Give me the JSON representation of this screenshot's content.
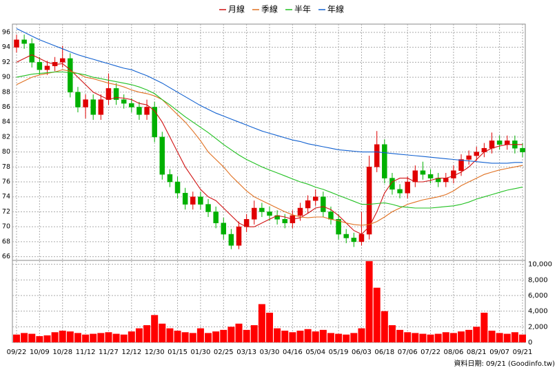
{
  "chart_data": [
    {
      "type": "candlestick",
      "categories": [
        "09/22",
        null,
        null,
        "10/09",
        null,
        null,
        "10/28",
        null,
        null,
        "11/12",
        null,
        null,
        "11/27",
        null,
        null,
        "12/12",
        null,
        null,
        "12/30",
        null,
        null,
        "01/15",
        null,
        null,
        "01/30",
        null,
        null,
        "02/25",
        null,
        null,
        "03/13",
        null,
        null,
        "03/30",
        null,
        null,
        "04/16",
        null,
        null,
        "05/04",
        null,
        null,
        "05/19",
        null,
        null,
        "06/03",
        null,
        null,
        "06/18",
        null,
        null,
        "07/06",
        null,
        null,
        "07/22",
        null,
        null,
        "08/06",
        null,
        null,
        "08/21",
        null,
        null,
        "09/07",
        null,
        null,
        "09/21"
      ],
      "open": [
        94,
        95,
        94.5,
        92,
        91,
        91.5,
        92,
        92.5,
        88,
        86,
        87,
        85,
        87,
        88.5,
        87,
        86.5,
        86,
        85,
        86,
        82,
        77,
        76,
        74.5,
        73,
        74,
        73,
        72,
        70.5,
        69,
        67.5,
        70,
        71,
        72.5,
        72,
        71.5,
        71,
        70.5,
        71.5,
        72.5,
        73.5,
        74,
        72,
        71,
        69,
        68.5,
        68,
        69,
        78,
        81,
        76.5,
        75,
        74.5,
        76,
        77.5,
        77,
        76.5,
        76,
        76.5,
        77.5,
        79,
        79.5,
        80,
        80.5,
        81.5,
        81,
        81.5,
        80.5
      ],
      "high": [
        95.7,
        95.7,
        95.2,
        92.7,
        92.2,
        92.7,
        94.2,
        93.2,
        88.7,
        87.7,
        87.7,
        87.7,
        90.5,
        89.2,
        87.7,
        87.2,
        86.7,
        87,
        86.7,
        82.7,
        77.7,
        76.7,
        75.2,
        74.7,
        74.7,
        73.7,
        72.7,
        71.2,
        69.7,
        70.7,
        71.7,
        73.5,
        73.2,
        72.7,
        72.2,
        71.7,
        72.2,
        73.2,
        74.2,
        75,
        74.7,
        72.7,
        71.7,
        69.7,
        69.2,
        72,
        79.5,
        82.8,
        81.7,
        77.2,
        75.7,
        76.7,
        78.2,
        78.7,
        77.7,
        77.2,
        77.2,
        78.2,
        79.7,
        80.2,
        80.7,
        81.2,
        82.6,
        82.2,
        82.2,
        82.2,
        81.2
      ],
      "low": [
        93.3,
        93.8,
        91.3,
        90.3,
        90.3,
        90.8,
        91.3,
        87.3,
        85.3,
        84.5,
        84.3,
        84.3,
        86.3,
        86.3,
        85.8,
        85.3,
        84.3,
        84.3,
        81.3,
        76.3,
        75.3,
        73.8,
        72.3,
        72.3,
        72.3,
        71.3,
        69.8,
        68.3,
        67,
        67,
        69.3,
        70.3,
        71.3,
        70.8,
        70.3,
        69.8,
        69.8,
        70.8,
        71.8,
        72.8,
        71.3,
        70.3,
        68.3,
        67.8,
        67.3,
        67.5,
        68.3,
        77.3,
        75.8,
        74.3,
        73.8,
        73.8,
        75.3,
        76.3,
        75.8,
        75.3,
        75.3,
        75.8,
        76.8,
        78.3,
        78.8,
        79.3,
        79.8,
        80.3,
        80.3,
        79.8,
        79.3
      ],
      "close": [
        95,
        94.5,
        92,
        91,
        91.5,
        92,
        92.5,
        88,
        86,
        87,
        85,
        87,
        88.5,
        87,
        86.5,
        86,
        85,
        86,
        82,
        77,
        76,
        74.5,
        73,
        74,
        73,
        72,
        70.5,
        69,
        67.5,
        70,
        71,
        72.5,
        72,
        71.5,
        71,
        70.5,
        71.5,
        72.5,
        73.5,
        74,
        72,
        71,
        69,
        68.5,
        68,
        69,
        78,
        81,
        76.5,
        75,
        74.5,
        76,
        77.5,
        77,
        76.5,
        76,
        76.5,
        77.5,
        79,
        79.5,
        80,
        80.5,
        81.5,
        81,
        81.5,
        80.5,
        80
      ],
      "up_color": "#e00000",
      "down_color": "#00b000",
      "series": [
        {
          "name": "月線",
          "color": "#d01010",
          "values": [
            92,
            92.5,
            93,
            92.5,
            92,
            91.7,
            91.8,
            91,
            90,
            89,
            88,
            87.5,
            87,
            87.3,
            87.2,
            87,
            86.5,
            86.3,
            85.5,
            84,
            82,
            80,
            78,
            76.5,
            75,
            74,
            73.5,
            72.5,
            71.5,
            70.5,
            70,
            70,
            70.5,
            71,
            71.5,
            71.3,
            71,
            71.2,
            71.8,
            72.5,
            72.7,
            72.3,
            71.5,
            70.5,
            69.5,
            69,
            70,
            72,
            74.5,
            76,
            76.5,
            76.5,
            76,
            76,
            76.2,
            76.5,
            76.5,
            76.8,
            77.3,
            78,
            79,
            80,
            80.5,
            80.8,
            81,
            81,
            81
          ]
        },
        {
          "name": "季線",
          "color": "#e07020",
          "values": [
            89,
            89.5,
            90,
            90.3,
            90.5,
            90.7,
            91,
            90.8,
            90.5,
            90,
            89.8,
            89.5,
            89.2,
            89,
            88.7,
            88.3,
            88,
            87.8,
            87.5,
            87,
            86,
            85,
            84,
            82.8,
            81.5,
            80,
            79,
            78,
            76.8,
            75.8,
            74.8,
            74,
            73.5,
            73,
            72.5,
            72,
            71.6,
            71.3,
            71.2,
            71.3,
            71.3,
            71,
            70.8,
            70.5,
            70.3,
            70.2,
            70.3,
            70.7,
            71.3,
            72,
            72.5,
            73,
            73.3,
            73.6,
            73.8,
            74,
            74.3,
            74.8,
            75.5,
            76,
            76.5,
            77,
            77.3,
            77.6,
            77.8,
            78,
            78.2
          ]
        },
        {
          "name": "半年",
          "color": "#20c020",
          "values": [
            90,
            90.2,
            90.4,
            90.5,
            90.6,
            90.7,
            90.7,
            90.6,
            90.5,
            90.3,
            90,
            89.8,
            89.6,
            89.4,
            89.2,
            89,
            88.7,
            88.3,
            87.8,
            87,
            86.3,
            85.5,
            84.7,
            84,
            83.3,
            82.6,
            81.8,
            81,
            80.3,
            79.6,
            79,
            78.5,
            78,
            77.6,
            77.2,
            76.8,
            76.4,
            76,
            75.7,
            75.3,
            75,
            74.6,
            74.2,
            73.8,
            73.4,
            73,
            73,
            73.1,
            73.2,
            73,
            72.7,
            72.6,
            72.5,
            72.5,
            72.5,
            72.6,
            72.7,
            72.8,
            73,
            73.3,
            73.7,
            74,
            74.3,
            74.6,
            74.9,
            75.1,
            75.3
          ]
        },
        {
          "name": "年線",
          "color": "#1060d0",
          "values": [
            96.5,
            96,
            95.5,
            95,
            94.6,
            94.2,
            93.8,
            93.4,
            93,
            92.7,
            92.4,
            92.1,
            91.8,
            91.5,
            91.2,
            91,
            90.6,
            90.2,
            89.7,
            89.2,
            88.6,
            88,
            87.4,
            86.8,
            86.2,
            85.7,
            85.2,
            84.8,
            84.4,
            84,
            83.6,
            83.2,
            82.8,
            82.5,
            82.2,
            81.9,
            81.6,
            81.4,
            81.1,
            80.9,
            80.7,
            80.5,
            80.3,
            80.2,
            80.1,
            80,
            80,
            80,
            79.9,
            79.8,
            79.7,
            79.6,
            79.5,
            79.4,
            79.3,
            79.2,
            79.1,
            79,
            78.9,
            78.8,
            78.7,
            78.6,
            78.5,
            78.5,
            78.5,
            78.6,
            78.6
          ]
        }
      ],
      "ylim": [
        65.5,
        97.1
      ],
      "yticks": [
        66,
        68,
        70,
        72,
        74,
        76,
        78,
        80,
        82,
        84,
        86,
        88,
        90,
        92,
        94,
        96
      ],
      "grid": true
    },
    {
      "type": "bar",
      "values": [
        1000,
        1200,
        1100,
        800,
        900,
        1300,
        1500,
        1400,
        1200,
        1000,
        1100,
        1200,
        1300,
        1100,
        1000,
        1400,
        1800,
        2200,
        3500,
        2400,
        1800,
        1500,
        1300,
        1200,
        1800,
        1200,
        1400,
        1600,
        2000,
        2400,
        1600,
        2200,
        4900,
        3800,
        1800,
        1500,
        1300,
        1500,
        1700,
        1400,
        1600,
        1200,
        1100,
        1000,
        1200,
        1800,
        10400,
        7000,
        4000,
        2200,
        1600,
        1300,
        1200,
        1100,
        1000,
        1100,
        1300,
        1200,
        1400,
        1600,
        2000,
        3800,
        1500,
        1200,
        1100,
        1300,
        1000
      ],
      "color": "#ff0000",
      "ylim": [
        0,
        10500
      ],
      "yticks": [
        0,
        {
          "value": 2000,
          "label": "2,000"
        },
        {
          "value": 4000,
          "label": "4,000"
        },
        {
          "value": 6000,
          "label": "6,000"
        },
        {
          "value": 8000,
          "label": "8,000"
        },
        {
          "value": 10000,
          "label": "10,000"
        }
      ],
      "grid": true
    }
  ],
  "footnote": "資料日期: 09/21  (Goodinfo.tw)"
}
